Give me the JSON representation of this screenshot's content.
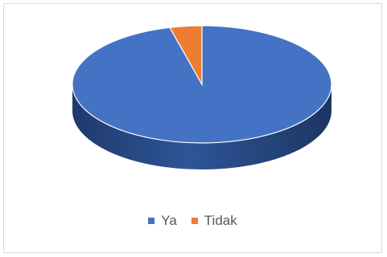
{
  "chart_data": {
    "type": "pie",
    "style": "3d",
    "title": "",
    "categories": [
      "Ya",
      "Tidak"
    ],
    "values": [
      96,
      4
    ],
    "colors": [
      "#4472C4",
      "#ED7D31"
    ],
    "side_colors": [
      "#2B4C86",
      "#B35A1F"
    ],
    "legend_position": "bottom"
  }
}
